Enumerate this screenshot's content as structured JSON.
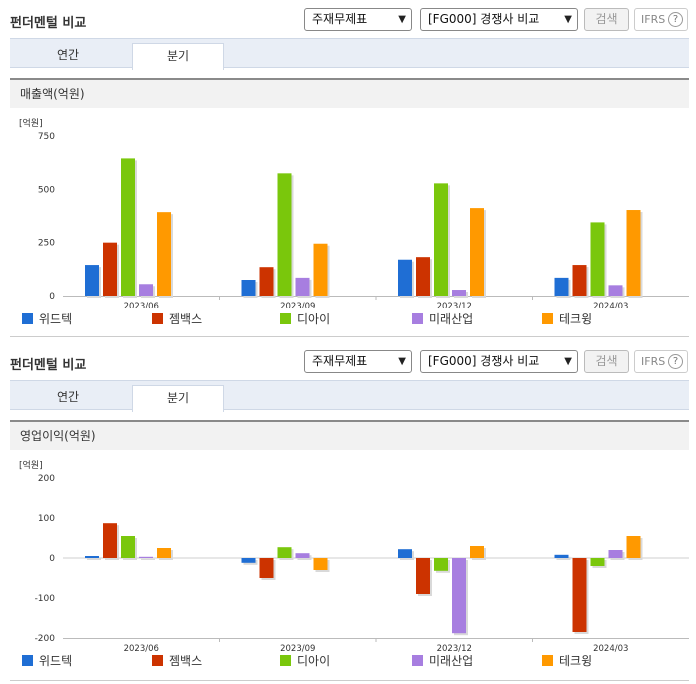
{
  "panels": [
    {
      "header": {
        "title": "펀더멘털 비교",
        "select1": "주재무제표",
        "select2": "[FG000] 경쟁사 비교",
        "search_label": "검색",
        "ifrs_label": "IFRS",
        "help_glyph": "?"
      },
      "tabs": [
        "연간",
        "분기"
      ],
      "active_tab": 1,
      "chart_title": "매출액(억원)"
    },
    {
      "header": {
        "title": "펀더멘털 비교",
        "select1": "주재무제표",
        "select2": "[FG000] 경쟁사 비교",
        "search_label": "검색",
        "ifrs_label": "IFRS",
        "help_glyph": "?"
      },
      "tabs": [
        "연간",
        "분기"
      ],
      "active_tab": 1,
      "chart_title": "영업이익(억원)"
    }
  ],
  "legend": [
    {
      "name": "위드텍",
      "color": "#1f6ed4"
    },
    {
      "name": "젬백스",
      "color": "#cc3300"
    },
    {
      "name": "디아이",
      "color": "#7ac70c"
    },
    {
      "name": "미래산업",
      "color": "#a77ee0"
    },
    {
      "name": "테크윙",
      "color": "#ff9900"
    }
  ],
  "chart_data": [
    {
      "type": "bar",
      "unit_label": "[억원]",
      "categories": [
        "2023/06",
        "2023/09",
        "2023/12",
        "2024/03"
      ],
      "ylim": [
        0,
        750
      ],
      "yticks": [
        0,
        250,
        500,
        750
      ],
      "series": [
        {
          "name": "위드텍",
          "values": [
            145,
            75,
            170,
            85
          ]
        },
        {
          "name": "젬백스",
          "values": [
            250,
            135,
            182,
            145
          ]
        },
        {
          "name": "디아이",
          "values": [
            645,
            575,
            528,
            345
          ]
        },
        {
          "name": "미래산업",
          "values": [
            55,
            85,
            28,
            50
          ]
        },
        {
          "name": "테크윙",
          "values": [
            393,
            245,
            412,
            403
          ]
        }
      ]
    },
    {
      "type": "bar",
      "unit_label": "[억원]",
      "categories": [
        "2023/06",
        "2023/09",
        "2023/12",
        "2024/03"
      ],
      "ylim": [
        -200,
        200
      ],
      "yticks": [
        -200,
        -100,
        0,
        100,
        200
      ],
      "series": [
        {
          "name": "위드텍",
          "values": [
            5,
            -12,
            22,
            8
          ]
        },
        {
          "name": "젬백스",
          "values": [
            87,
            -50,
            -90,
            -185
          ]
        },
        {
          "name": "디아이",
          "values": [
            55,
            27,
            -32,
            -20
          ]
        },
        {
          "name": "미래산업",
          "values": [
            3,
            12,
            -188,
            20
          ]
        },
        {
          "name": "테크윙",
          "values": [
            25,
            -30,
            30,
            55
          ]
        }
      ]
    }
  ]
}
